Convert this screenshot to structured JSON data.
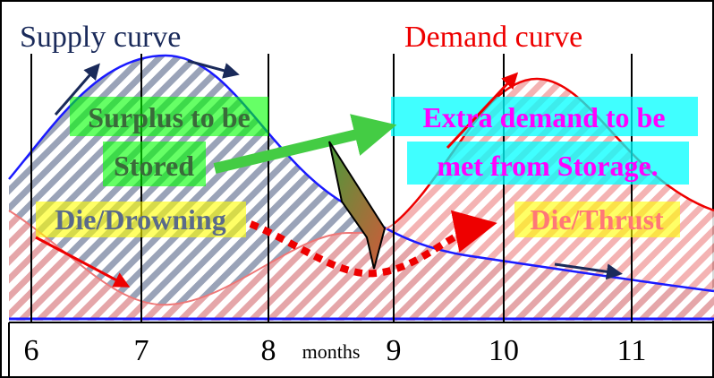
{
  "curves": {
    "supply": "Supply curve",
    "demand": "Demand curve"
  },
  "notes": {
    "surplus": [
      "Surplus to be",
      "Stored"
    ],
    "extra": [
      "Extra demand to be",
      "met from Storage."
    ],
    "drowning": "Die/Drowning",
    "thrust": "Die/Thrust"
  },
  "axis": {
    "ticks": [
      "6",
      "7",
      "8",
      "9",
      "10",
      "11"
    ],
    "unit": "months"
  }
}
